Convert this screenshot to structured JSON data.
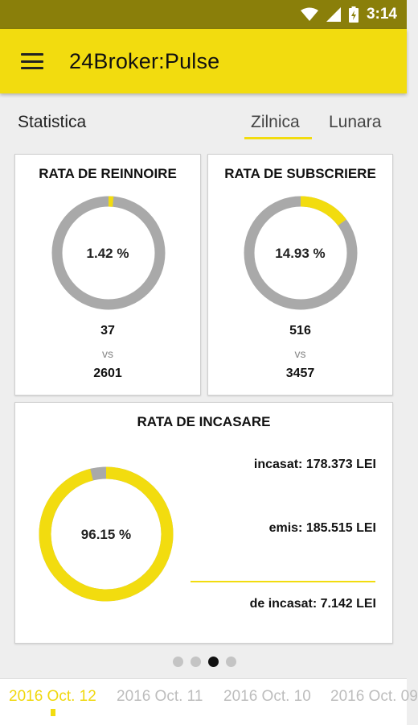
{
  "status_bar": {
    "time": "3:14",
    "icons": [
      "wifi-icon",
      "signal-icon",
      "battery-icon"
    ]
  },
  "app_bar": {
    "title": "24Broker:Pulse",
    "menu_icon": "menu-icon"
  },
  "section": {
    "label": "Statistica"
  },
  "tabs": [
    {
      "label": "Zilnica",
      "selected": true
    },
    {
      "label": "Lunara",
      "selected": false
    }
  ],
  "cards": {
    "reinnoire": {
      "title": "RATA DE REINNOIRE",
      "percent_label": "1.42 %",
      "percent": 1.42,
      "value": "37",
      "vs": "vs",
      "total": "2601"
    },
    "subscriere": {
      "title": "RATA DE SUBSCRIERE",
      "percent_label": "14.93 %",
      "percent": 14.93,
      "value": "516",
      "vs": "vs",
      "total": "3457"
    },
    "incasare": {
      "title": "RATA DE INCASARE",
      "percent_label": "96.15 %",
      "percent": 96.15,
      "incasat": "incasat: 178.373 LEI",
      "emis": "emis: 185.515 LEI",
      "de_incasat": "de incasat: 7.142 LEI"
    }
  },
  "pager": {
    "count": 4,
    "active_index": 2
  },
  "dates": [
    {
      "label": "2016 Oct. 12",
      "active": true
    },
    {
      "label": "2016 Oct. 11",
      "active": false
    },
    {
      "label": "2016 Oct. 10",
      "active": false
    },
    {
      "label": "2016 Oct. 09",
      "active": false
    }
  ],
  "colors": {
    "accent": "#f2dc0f",
    "track": "#a9a9a9",
    "statusbar": "#8a7f0a"
  }
}
